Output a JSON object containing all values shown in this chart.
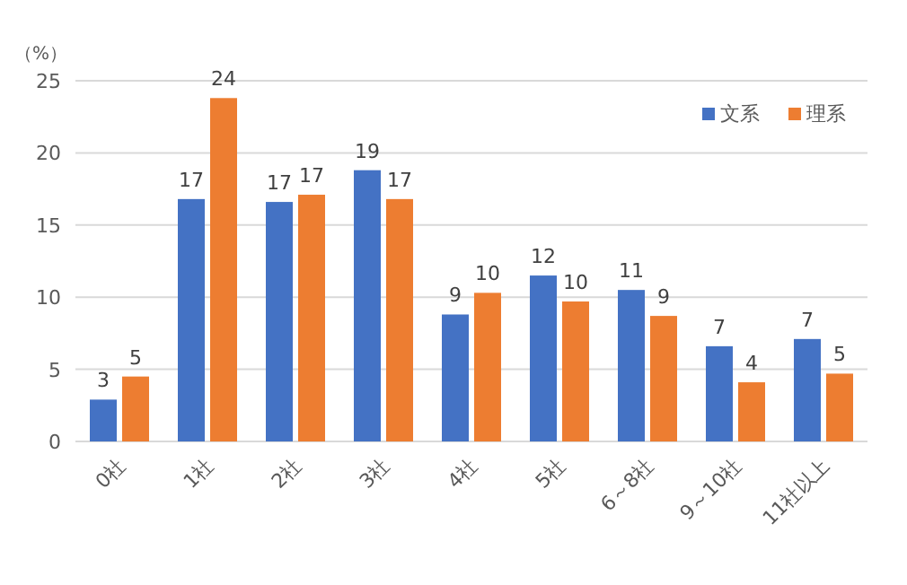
{
  "chart_data": {
    "type": "bar",
    "ylabel": "（%）",
    "categories": [
      "0社",
      "1社",
      "2社",
      "3社",
      "4社",
      "5社",
      "6～8社",
      "9～10社",
      "11社以上"
    ],
    "series": [
      {
        "name": "文系",
        "color": "#4472c4",
        "values": [
          2.9,
          16.8,
          16.6,
          18.8,
          8.8,
          11.5,
          10.5,
          6.6,
          7.1
        ],
        "value_labels": [
          "3",
          "17",
          "17",
          "19",
          "9",
          "12",
          "11",
          "7",
          "7"
        ]
      },
      {
        "name": "理系",
        "color": "#ed7d31",
        "values": [
          4.5,
          23.8,
          17.1,
          16.8,
          10.3,
          9.7,
          8.7,
          4.1,
          4.7
        ],
        "value_labels": [
          "5",
          "24",
          "17",
          "17",
          "10",
          "10",
          "9",
          "4",
          "5"
        ]
      }
    ],
    "ylim": [
      0,
      25
    ],
    "yticks": [
      0,
      5,
      10,
      15,
      20,
      25
    ],
    "grid": "y",
    "legend": "top right"
  }
}
